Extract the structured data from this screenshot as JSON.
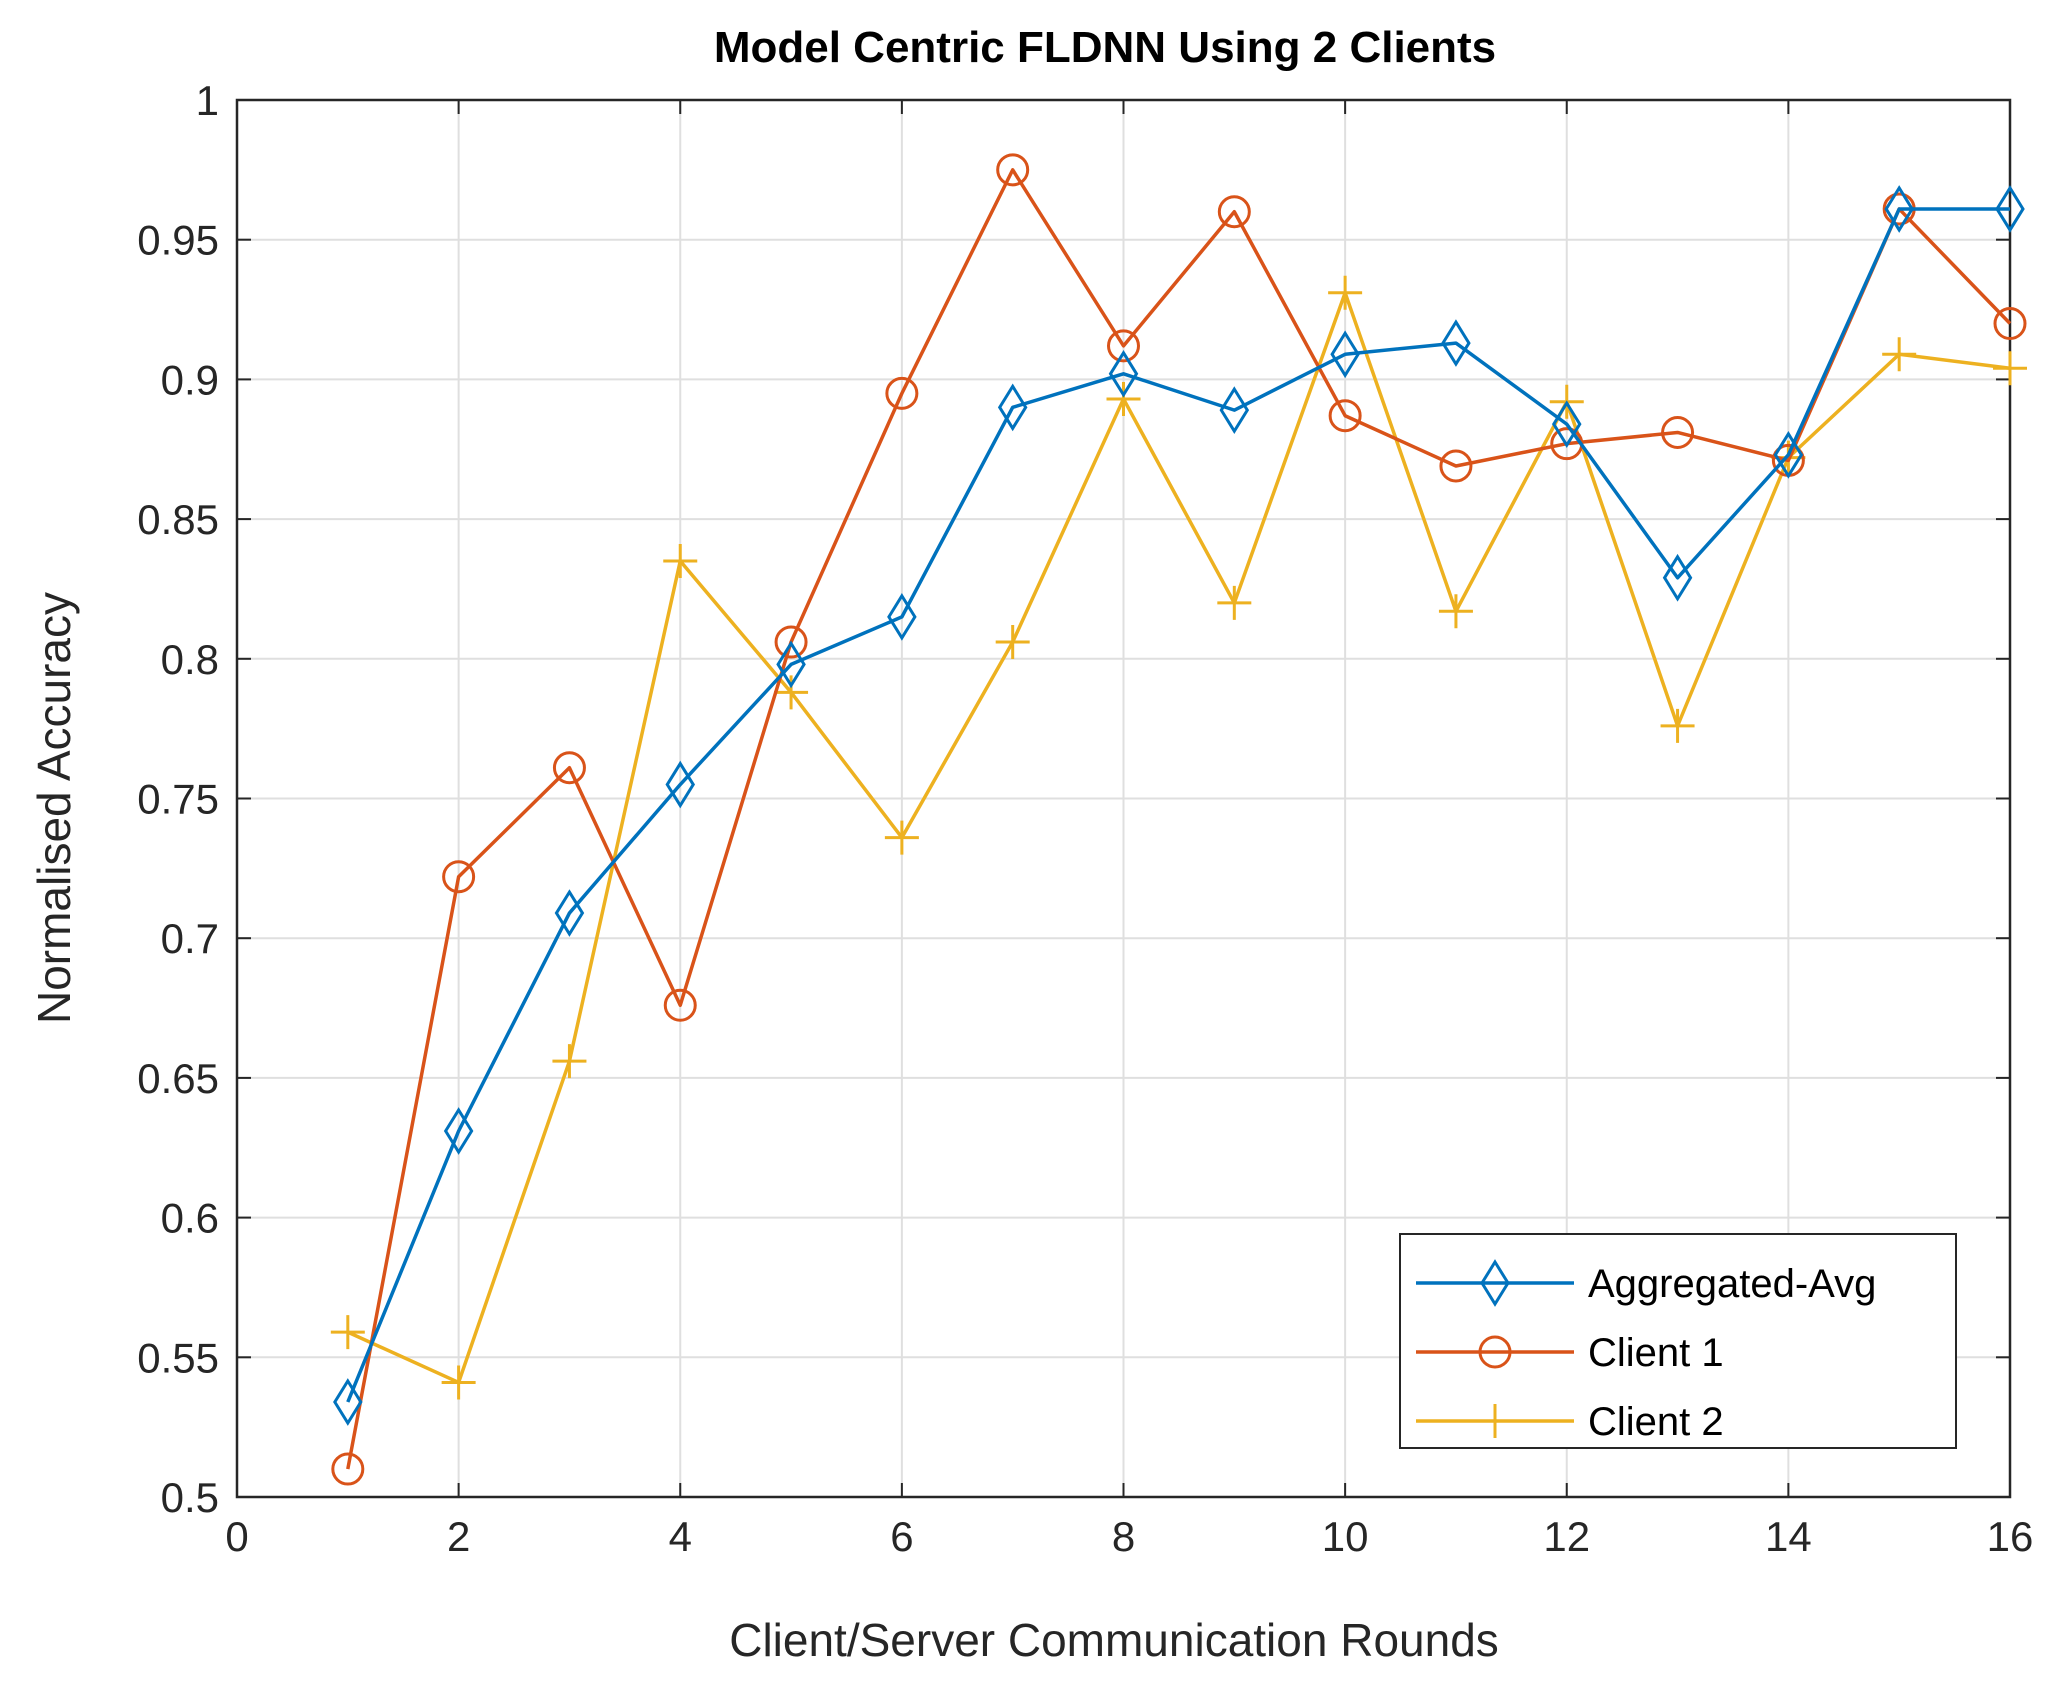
{
  "chart_data": {
    "type": "line",
    "title": "Model Centric FLDNN Using 2 Clients",
    "xlabel": "Client/Server Communication Rounds",
    "ylabel": "Normalised Accuracy",
    "xlim": [
      0,
      16
    ],
    "ylim": [
      0.5,
      1
    ],
    "xticks": [
      0,
      2,
      4,
      6,
      8,
      10,
      12,
      14,
      16
    ],
    "xtick_labels": [
      "0",
      "2",
      "4",
      "6",
      "8",
      "10",
      "12",
      "14",
      "16"
    ],
    "yticks": [
      0.5,
      0.55,
      0.6,
      0.65,
      0.7,
      0.75,
      0.8,
      0.85,
      0.9,
      0.95,
      1
    ],
    "ytick_labels": [
      "0.5",
      "0.55",
      "0.6",
      "0.65",
      "0.7",
      "0.75",
      "0.8",
      "0.85",
      "0.9",
      "0.95",
      "1"
    ],
    "grid": true,
    "legend_position": "bottom-right",
    "x": [
      1,
      2,
      3,
      4,
      5,
      6,
      7,
      8,
      9,
      10,
      11,
      12,
      13,
      14,
      15,
      16
    ],
    "series": [
      {
        "name": "Aggregated-Avg",
        "color": "#0072BD",
        "marker": "diamond",
        "values": [
          0.534,
          0.631,
          0.709,
          0.755,
          0.798,
          0.815,
          0.89,
          0.902,
          0.889,
          0.909,
          0.913,
          0.884,
          0.829,
          0.873,
          0.961,
          0.961
        ]
      },
      {
        "name": "Client 1",
        "color": "#D95319",
        "marker": "circle",
        "values": [
          0.51,
          0.722,
          0.761,
          0.676,
          0.806,
          0.895,
          0.975,
          0.912,
          0.96,
          0.887,
          0.869,
          0.877,
          0.881,
          0.871,
          0.961,
          0.92
        ]
      },
      {
        "name": "Client 2",
        "color": "#EDB120",
        "marker": "plus",
        "values": [
          0.559,
          0.541,
          0.656,
          0.835,
          0.788,
          0.736,
          0.806,
          0.893,
          0.82,
          0.931,
          0.817,
          0.892,
          0.776,
          0.872,
          0.909,
          0.904
        ]
      }
    ]
  }
}
